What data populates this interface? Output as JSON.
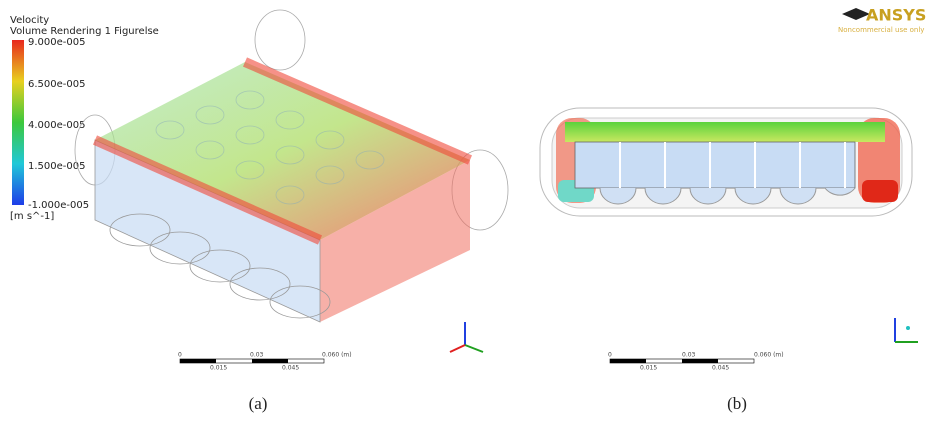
{
  "panel_a": {
    "legend": {
      "title": "Velocity",
      "subtitle": "Volume Rendering 1 Figurelse",
      "labels": [
        "9.000e-005",
        "6.500e-005",
        "4.000e-005",
        "1.500e-005",
        "-1.000e-005"
      ],
      "unit": "[m s^-1]"
    },
    "scale_bar": {
      "top": [
        "0",
        "0.03",
        "0.060 (m)"
      ],
      "bottom": [
        "0.015",
        "0.045"
      ]
    },
    "caption": "(a)"
  },
  "panel_b": {
    "logo": {
      "name": "ANSYS",
      "note": "Noncommercial use only"
    },
    "scale_bar": {
      "top": [
        "0",
        "0.03",
        "0.060 (m)"
      ],
      "bottom": [
        "0.015",
        "0.045"
      ]
    },
    "caption": "(b)"
  }
}
